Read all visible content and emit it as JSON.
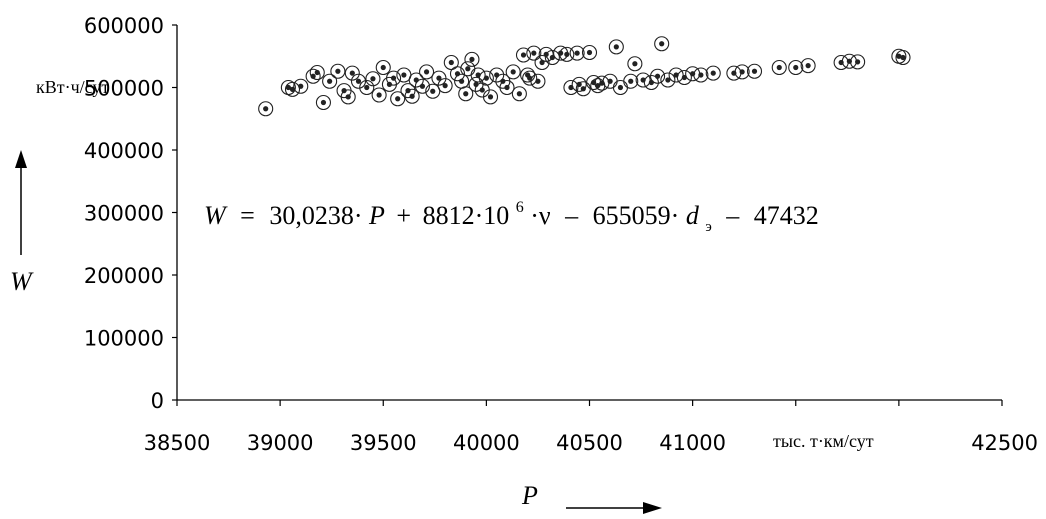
{
  "chart_data": {
    "type": "scatter",
    "title": "",
    "xlabel": "P",
    "ylabel": "W",
    "x_unit": "тыс. т·км/сут",
    "y_unit": "кВт·ч/сут",
    "xlim": [
      38500,
      42500
    ],
    "ylim": [
      0,
      600000
    ],
    "x_ticks": [
      "38500",
      "39000",
      "39500",
      "40000",
      "40500",
      "41000",
      "42500"
    ],
    "y_ticks": [
      "0",
      "100000",
      "200000",
      "300000",
      "400000",
      "500000",
      "600000"
    ],
    "grid": false,
    "marker": "open circle with dot",
    "equation": {
      "W": "W",
      "eq": "=",
      "p1": "30,0238·",
      "P": "P",
      "p2": "+",
      "p3": "8812·10",
      "exp": "6",
      "p4": "·ν",
      "p5": "–",
      "p6": "655059·",
      "d": "d",
      "sub": "э",
      "p7": "–",
      "p8": "47432"
    },
    "points": [
      [
        38930,
        466000
      ],
      [
        39040,
        500000
      ],
      [
        39060,
        497000
      ],
      [
        39100,
        502000
      ],
      [
        39160,
        518000
      ],
      [
        39180,
        524000
      ],
      [
        39210,
        476000
      ],
      [
        39240,
        510000
      ],
      [
        39280,
        526000
      ],
      [
        39310,
        495000
      ],
      [
        39330,
        485000
      ],
      [
        39350,
        523000
      ],
      [
        39380,
        510000
      ],
      [
        39420,
        500000
      ],
      [
        39450,
        514000
      ],
      [
        39480,
        488000
      ],
      [
        39500,
        532000
      ],
      [
        39530,
        505000
      ],
      [
        39550,
        515000
      ],
      [
        39570,
        482000
      ],
      [
        39600,
        520000
      ],
      [
        39620,
        495000
      ],
      [
        39640,
        486000
      ],
      [
        39660,
        512000
      ],
      [
        39690,
        502000
      ],
      [
        39710,
        525000
      ],
      [
        39740,
        494000
      ],
      [
        39770,
        515000
      ],
      [
        39800,
        503000
      ],
      [
        39830,
        540000
      ],
      [
        39860,
        522000
      ],
      [
        39880,
        510000
      ],
      [
        39900,
        490000
      ],
      [
        39910,
        530000
      ],
      [
        39930,
        545000
      ],
      [
        39950,
        505000
      ],
      [
        39960,
        520000
      ],
      [
        39980,
        496000
      ],
      [
        40000,
        515000
      ],
      [
        40020,
        485000
      ],
      [
        40050,
        520000
      ],
      [
        40080,
        510000
      ],
      [
        40100,
        500000
      ],
      [
        40130,
        525000
      ],
      [
        40160,
        490000
      ],
      [
        40180,
        552000
      ],
      [
        40200,
        520000
      ],
      [
        40210,
        515000
      ],
      [
        40230,
        555000
      ],
      [
        40250,
        510000
      ],
      [
        40270,
        540000
      ],
      [
        40290,
        553000
      ],
      [
        40320,
        548000
      ],
      [
        40360,
        555000
      ],
      [
        40390,
        553000
      ],
      [
        40410,
        500000
      ],
      [
        40440,
        555000
      ],
      [
        40450,
        505000
      ],
      [
        40470,
        498000
      ],
      [
        40500,
        556000
      ],
      [
        40520,
        508000
      ],
      [
        40540,
        503000
      ],
      [
        40560,
        507000
      ],
      [
        40600,
        510000
      ],
      [
        40630,
        565000
      ],
      [
        40650,
        500000
      ],
      [
        40700,
        510000
      ],
      [
        40720,
        538000
      ],
      [
        40760,
        512000
      ],
      [
        40800,
        508000
      ],
      [
        40830,
        518000
      ],
      [
        40850,
        570000
      ],
      [
        40880,
        512000
      ],
      [
        40920,
        520000
      ],
      [
        40960,
        516000
      ],
      [
        41000,
        522000
      ],
      [
        41040,
        520000
      ],
      [
        41100,
        523000
      ],
      [
        41200,
        523000
      ],
      [
        41240,
        525000
      ],
      [
        41300,
        526000
      ],
      [
        41420,
        532000
      ],
      [
        41500,
        532000
      ],
      [
        41560,
        535000
      ],
      [
        41720,
        540000
      ],
      [
        41760,
        542000
      ],
      [
        41800,
        541000
      ],
      [
        42000,
        550000
      ],
      [
        42020,
        548000
      ]
    ]
  }
}
